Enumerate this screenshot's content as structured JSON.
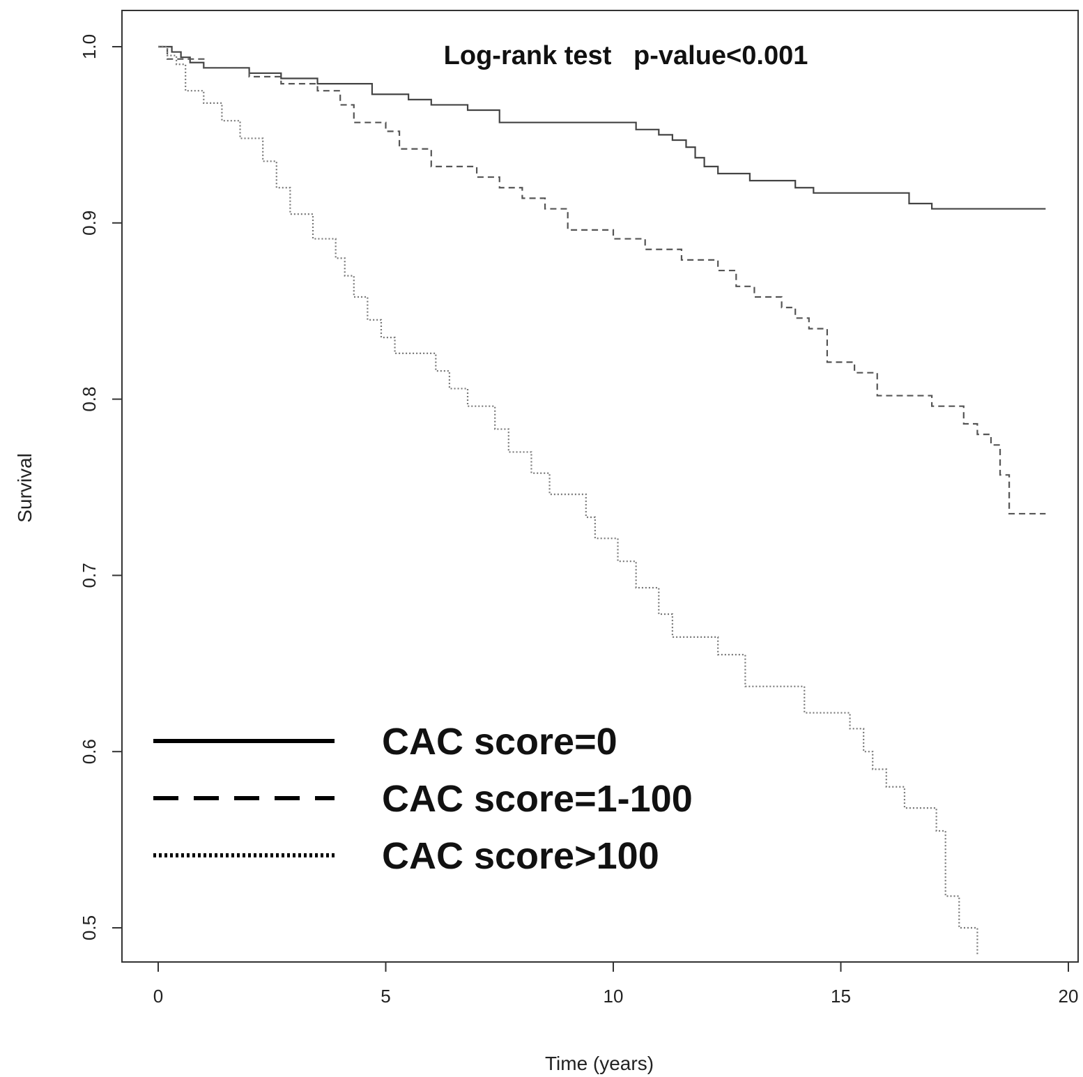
{
  "chart_data": {
    "type": "line",
    "step": true,
    "title": "",
    "xlabel": "Time (years)",
    "ylabel": "Survival",
    "xlim": [
      0,
      20
    ],
    "ylim": [
      0.48,
      1.0
    ],
    "x_ticks": [
      0,
      5,
      10,
      15,
      20
    ],
    "x_tick_labels": [
      "0",
      "5",
      "10",
      "15",
      "20"
    ],
    "y_ticks": [
      0.5,
      0.6,
      0.7,
      0.8,
      0.9,
      1.0
    ],
    "y_tick_labels": [
      "0.5",
      "0.6",
      "0.7",
      "0.8",
      "0.9",
      "1.0"
    ],
    "annotation": "Log-rank test   p-value<0.001",
    "legend_position": "bottom-left",
    "grid": false,
    "series": [
      {
        "name": "CAC score=0",
        "line_style": "solid",
        "color": "#444444",
        "x": [
          0,
          0.3,
          0.5,
          0.7,
          1.0,
          2.0,
          2.7,
          3.5,
          4.7,
          5.5,
          6.0,
          6.8,
          7.5,
          10.5,
          11.0,
          11.3,
          11.6,
          11.8,
          12.0,
          12.3,
          13.0,
          14.0,
          14.4,
          16.5,
          17.0,
          19.5
        ],
        "y": [
          1.0,
          0.997,
          0.994,
          0.991,
          0.988,
          0.985,
          0.982,
          0.979,
          0.973,
          0.97,
          0.967,
          0.964,
          0.957,
          0.953,
          0.95,
          0.947,
          0.943,
          0.937,
          0.932,
          0.928,
          0.924,
          0.92,
          0.917,
          0.911,
          0.908,
          0.908
        ]
      },
      {
        "name": "CAC score=1-100",
        "line_style": "dashed",
        "color": "#555555",
        "x": [
          0,
          0.2,
          1.0,
          2.0,
          2.7,
          3.5,
          4.0,
          4.3,
          5.0,
          5.3,
          6.0,
          7.0,
          7.5,
          8.0,
          8.5,
          9.0,
          10.0,
          10.7,
          11.5,
          12.3,
          12.7,
          13.1,
          13.7,
          14.0,
          14.3,
          14.7,
          15.3,
          15.8,
          17.0,
          17.7,
          18.0,
          18.3,
          18.5,
          18.7,
          19.5
        ],
        "y": [
          1.0,
          0.993,
          0.988,
          0.983,
          0.979,
          0.975,
          0.967,
          0.957,
          0.952,
          0.942,
          0.932,
          0.926,
          0.92,
          0.914,
          0.908,
          0.896,
          0.891,
          0.885,
          0.879,
          0.873,
          0.864,
          0.858,
          0.852,
          0.846,
          0.84,
          0.821,
          0.815,
          0.802,
          0.796,
          0.786,
          0.78,
          0.774,
          0.757,
          0.735,
          0.735
        ]
      },
      {
        "name": "CAC score>100",
        "line_style": "dotted",
        "color": "#777777",
        "x": [
          0,
          0.2,
          0.4,
          0.6,
          1.0,
          1.4,
          1.8,
          2.3,
          2.6,
          2.9,
          3.4,
          3.9,
          4.1,
          4.3,
          4.6,
          4.9,
          5.2,
          6.1,
          6.4,
          6.8,
          7.4,
          7.7,
          8.2,
          8.6,
          9.4,
          9.6,
          10.1,
          10.5,
          11.0,
          11.3,
          12.3,
          12.9,
          14.2,
          15.2,
          15.5,
          15.7,
          16.0,
          16.4,
          17.1,
          17.3,
          17.6,
          18.0
        ],
        "y": [
          1.0,
          0.995,
          0.99,
          0.975,
          0.968,
          0.958,
          0.948,
          0.935,
          0.92,
          0.905,
          0.891,
          0.88,
          0.87,
          0.858,
          0.845,
          0.835,
          0.826,
          0.816,
          0.806,
          0.796,
          0.783,
          0.77,
          0.758,
          0.746,
          0.733,
          0.721,
          0.708,
          0.693,
          0.678,
          0.665,
          0.655,
          0.637,
          0.622,
          0.613,
          0.6,
          0.59,
          0.58,
          0.568,
          0.555,
          0.518,
          0.5,
          0.485
        ]
      }
    ]
  }
}
